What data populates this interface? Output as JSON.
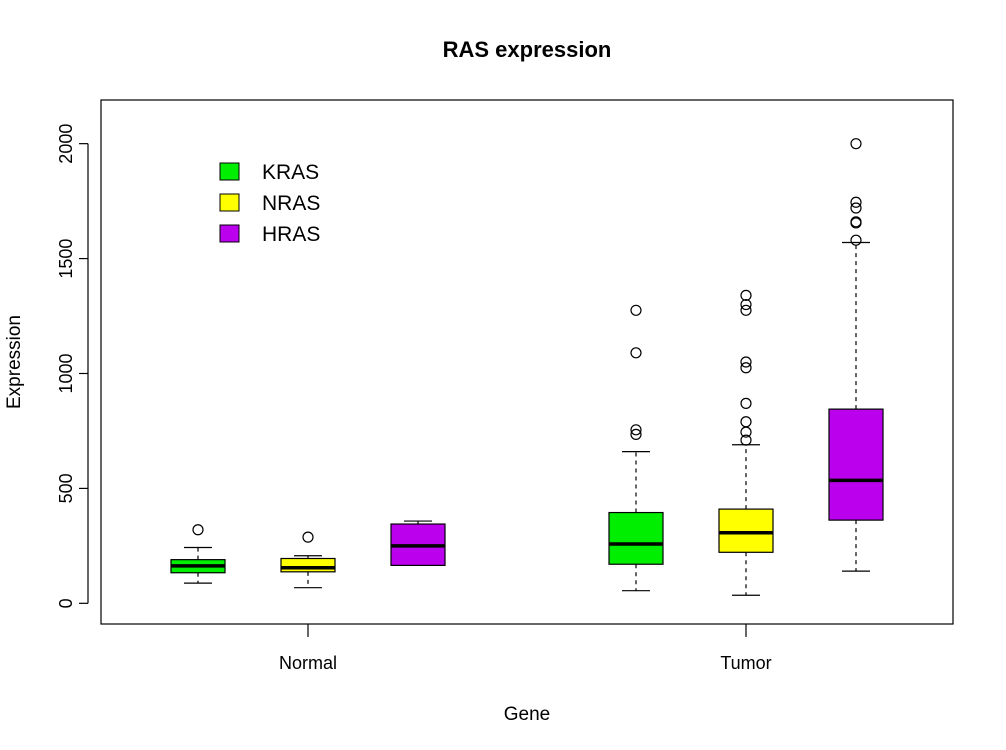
{
  "chart_data": {
    "type": "box",
    "title": "RAS expression",
    "xlabel": "Gene",
    "ylabel": "Expression",
    "ylim": [
      -90,
      2190
    ],
    "yticks": [
      0,
      500,
      1000,
      1500,
      2000
    ],
    "categories": [
      "Normal",
      "Tumor"
    ],
    "legend": {
      "placement": "top-left",
      "entries": [
        {
          "label": "KRAS",
          "color": "#00ee00"
        },
        {
          "label": "NRAS",
          "color": "#ffff00"
        },
        {
          "label": "HRAS",
          "color": "#bb00ee"
        }
      ]
    },
    "series": [
      {
        "name": "KRAS",
        "color": "#00ee00",
        "boxes": [
          {
            "category": "Normal",
            "whisker_low": 88,
            "q1": 133,
            "median": 163,
            "q3": 190,
            "whisker_high": 243,
            "outliers": [
              320
            ]
          },
          {
            "category": "Tumor",
            "whisker_low": 55,
            "q1": 170,
            "median": 258,
            "q3": 395,
            "whisker_high": 660,
            "outliers": [
              735,
              755,
              1090,
              1275
            ]
          }
        ]
      },
      {
        "name": "NRAS",
        "color": "#ffff00",
        "boxes": [
          {
            "category": "Normal",
            "whisker_low": 68,
            "q1": 137,
            "median": 155,
            "q3": 195,
            "whisker_high": 207,
            "outliers": [
              288
            ]
          },
          {
            "category": "Tumor",
            "whisker_low": 35,
            "q1": 222,
            "median": 307,
            "q3": 410,
            "whisker_high": 690,
            "outliers": [
              710,
              745,
              790,
              870,
              1025,
              1050,
              1275,
              1300,
              1340
            ]
          }
        ]
      },
      {
        "name": "HRAS",
        "color": "#bb00ee",
        "boxes": [
          {
            "category": "Normal",
            "whisker_low": 165,
            "q1": 165,
            "median": 250,
            "q3": 345,
            "whisker_high": 358,
            "outliers": []
          },
          {
            "category": "Tumor",
            "whisker_low": 140,
            "q1": 362,
            "median": 535,
            "q3": 845,
            "whisker_high": 1570,
            "outliers": [
              1580,
              1655,
              1660,
              1720,
              1745,
              2000
            ]
          }
        ]
      }
    ],
    "grid": false
  }
}
